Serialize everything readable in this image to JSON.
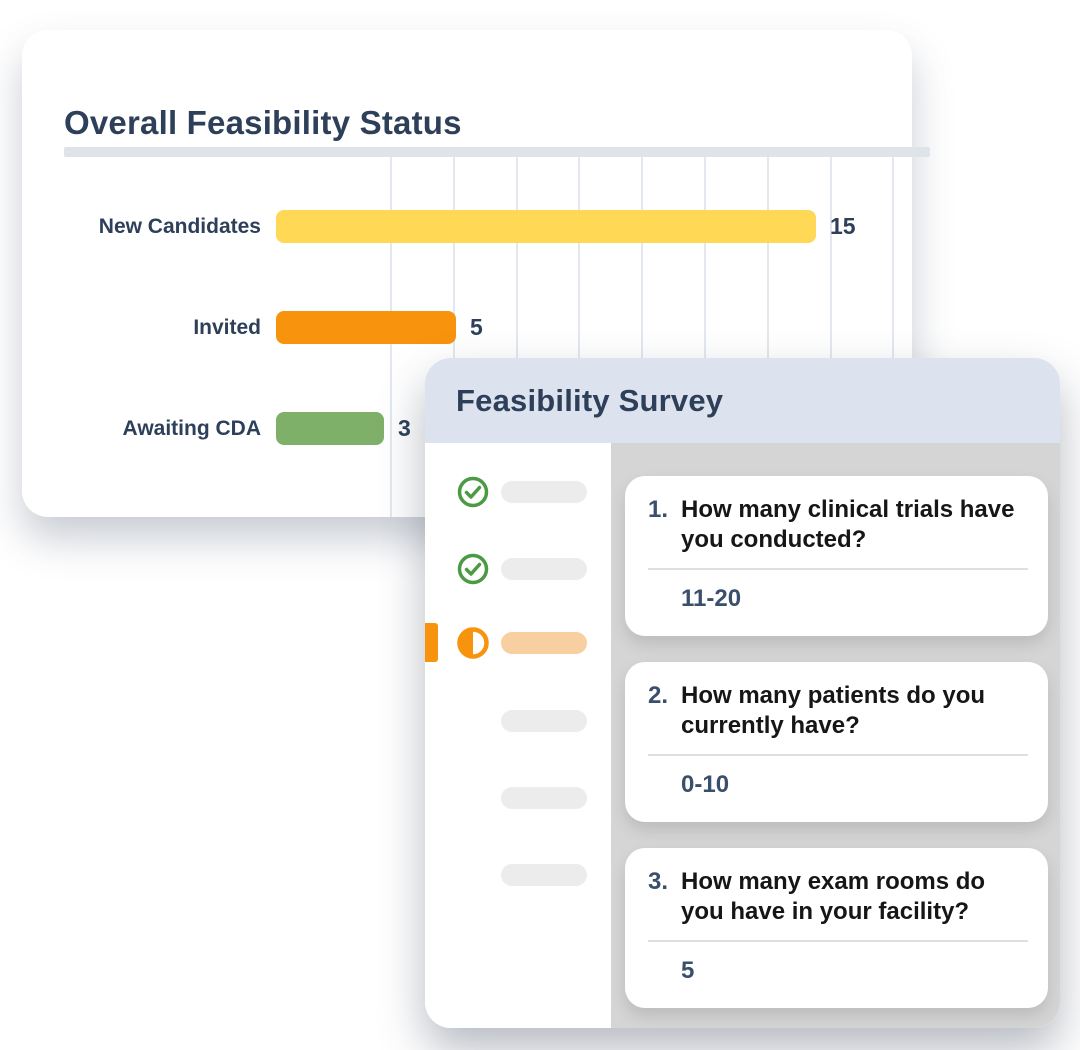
{
  "chart_card": {
    "title": "Overall Feasibility Status"
  },
  "chart_data": {
    "type": "bar",
    "orientation": "horizontal",
    "title": "Overall Feasibility Status",
    "categories": [
      "New Candidates",
      "Invited",
      "Awaiting CDA"
    ],
    "values": [
      15,
      5,
      3
    ],
    "rows": [
      {
        "label": "New Candidates",
        "value": 15,
        "color": "#FFD855"
      },
      {
        "label": "Invited",
        "value": 5,
        "color": "#F7930D"
      },
      {
        "label": "Awaiting CDA",
        "value": 3,
        "color": "#7FB06A"
      }
    ],
    "xlabel": "",
    "ylabel": "",
    "grid": true,
    "value_labels": true,
    "xlim": [
      0,
      16
    ]
  },
  "survey_card": {
    "title": "Feasibility Survey",
    "steps": [
      {
        "status": "complete",
        "icon": "check-circle-icon"
      },
      {
        "status": "complete",
        "icon": "check-circle-icon"
      },
      {
        "status": "in-progress",
        "icon": "half-progress-icon"
      },
      {
        "status": "pending",
        "icon": ""
      },
      {
        "status": "pending",
        "icon": ""
      },
      {
        "status": "pending",
        "icon": ""
      }
    ],
    "questions": [
      {
        "number": "1.",
        "text": "How many clinical trials have you conducted?",
        "answer": "11-20"
      },
      {
        "number": "2.",
        "text": "How many patients do you currently have?",
        "answer": "0-10"
      },
      {
        "number": "3.",
        "text": "How many exam rooms do you have in your facility?",
        "answer": "5"
      }
    ]
  },
  "colors": {
    "navy_text": "#2D3F59",
    "slate_text": "#3A4F6B",
    "question_text": "#161616",
    "bar_yellow": "#FFD855",
    "bar_orange": "#F7930D",
    "bar_green": "#7FB06A",
    "check_green": "#4C9A43",
    "progress_orange": "#F7930D",
    "pill_gray": "#ECECEC",
    "pill_orange": "#F8CFA0",
    "survey_header_bg": "#DCE2EE",
    "question_panel_bg": "#D5D5D5",
    "title_divider": "#DFE3EA",
    "gridline": "#E3E7EE"
  }
}
